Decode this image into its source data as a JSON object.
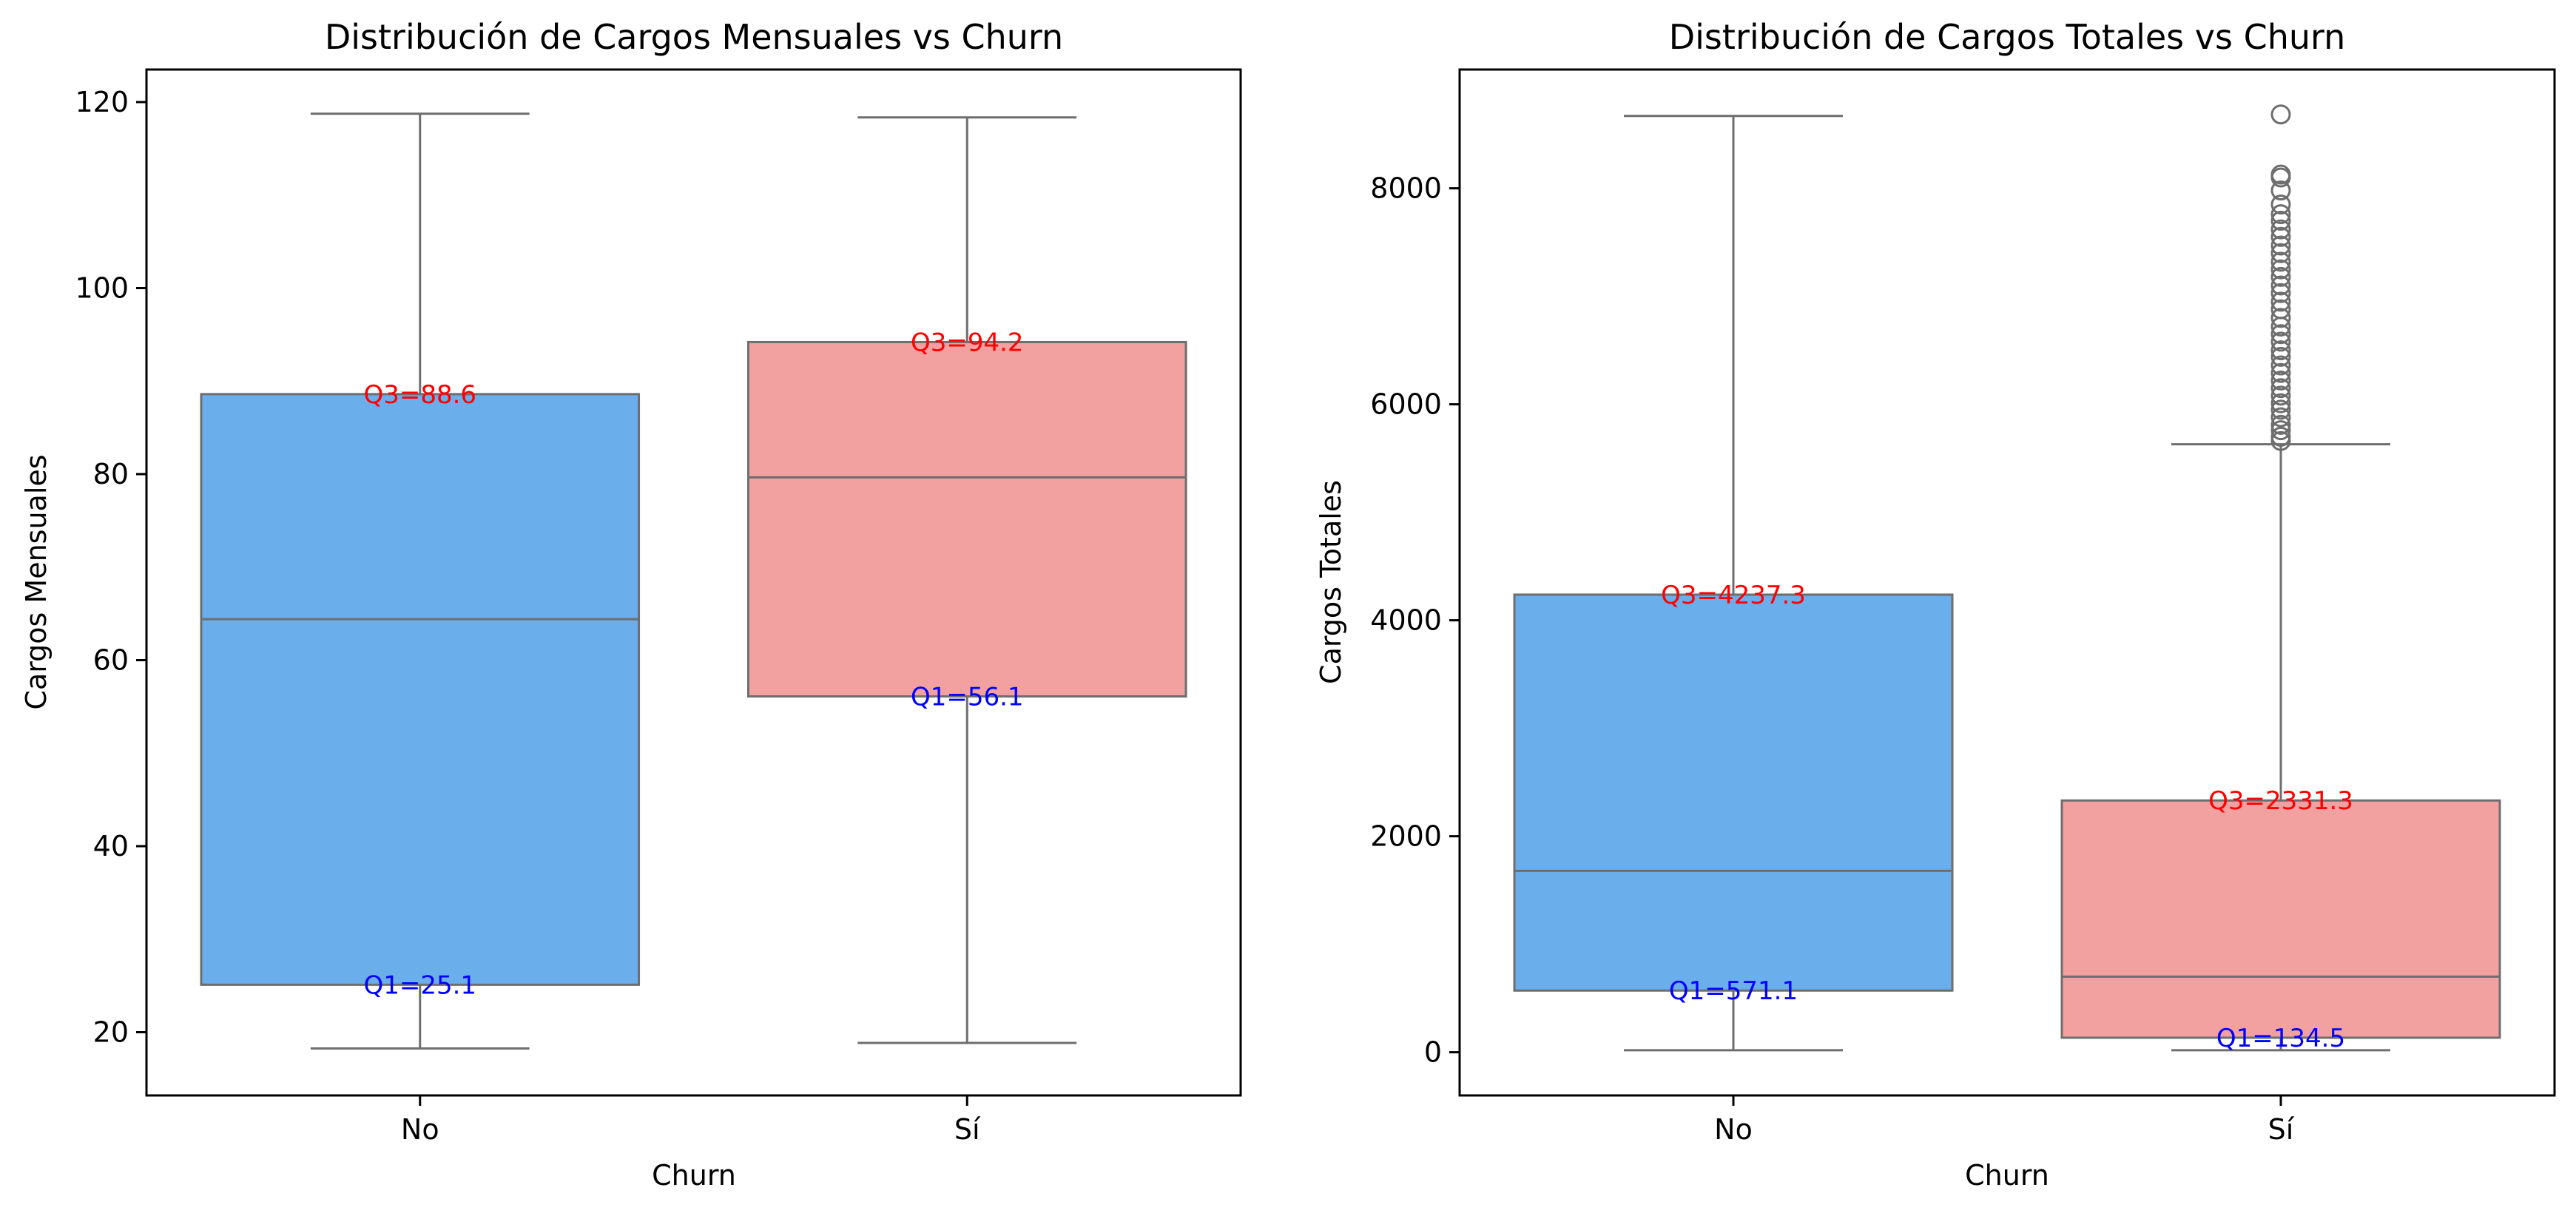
{
  "chart_data": [
    {
      "type": "box",
      "title": "Distribución de Cargos Mensuales vs Churn",
      "xlabel": "Churn",
      "ylabel": "Cargos Mensuales",
      "categories": [
        "No",
        "Sí"
      ],
      "ylim": [
        13.2,
        123.5
      ],
      "yticks": [
        20,
        40,
        60,
        80,
        100,
        120
      ],
      "grid": false,
      "boxes": [
        {
          "category": "No",
          "whisker_low": 18.25,
          "q1": 25.1,
          "median": 64.4,
          "q3": 88.6,
          "whisker_high": 118.75,
          "color": "#6aaeec",
          "outliers": []
        },
        {
          "category": "Sí",
          "whisker_low": 18.85,
          "q1": 56.1,
          "median": 79.65,
          "q3": 94.2,
          "whisker_high": 118.35,
          "color": "#f2a0a0",
          "outliers": []
        }
      ],
      "annotations": [
        {
          "text": "Q3=88.6",
          "category": "No",
          "y": 88.6,
          "color": "#ff0000"
        },
        {
          "text": "Q1=25.1",
          "category": "No",
          "y": 25.1,
          "color": "#0000ff"
        },
        {
          "text": "Q3=94.2",
          "category": "Sí",
          "y": 94.2,
          "color": "#ff0000"
        },
        {
          "text": "Q1=56.1",
          "category": "Sí",
          "y": 56.1,
          "color": "#0000ff"
        }
      ]
    },
    {
      "type": "box",
      "title": "Distribución de Cargos Totales vs Churn",
      "xlabel": "Churn",
      "ylabel": "Cargos Totales",
      "categories": [
        "No",
        "Sí"
      ],
      "ylim": [
        -400,
        9100
      ],
      "yticks": [
        0,
        2000,
        4000,
        6000,
        8000
      ],
      "grid": false,
      "boxes": [
        {
          "category": "No",
          "whisker_low": 19,
          "q1": 571.1,
          "median": 1680,
          "q3": 4237.3,
          "whisker_high": 8670,
          "color": "#6aaeec",
          "outliers": []
        },
        {
          "category": "Sí",
          "whisker_low": 19,
          "q1": 134.5,
          "median": 700,
          "q3": 2331.3,
          "whisker_high": 5630,
          "color": "#f2a0a0",
          "outliers": [
            8684,
            8127,
            8100,
            7980,
            7850,
            7760,
            7700,
            7620,
            7550,
            7470,
            7400,
            7320,
            7250,
            7180,
            7100,
            7030,
            6950,
            6880,
            6800,
            6720,
            6650,
            6580,
            6500,
            6440,
            6360,
            6290,
            6220,
            6150,
            6080,
            6010,
            5950,
            5880,
            5810,
            5760,
            5700,
            5660
          ]
        }
      ],
      "annotations": [
        {
          "text": "Q3=4237.3",
          "category": "No",
          "y": 4237.3,
          "color": "#ff0000"
        },
        {
          "text": "Q1=571.1",
          "category": "No",
          "y": 571.1,
          "color": "#0000ff"
        },
        {
          "text": "Q3=2331.3",
          "category": "Sí",
          "y": 2331.3,
          "color": "#ff0000"
        },
        {
          "text": "Q1=134.5",
          "category": "Sí",
          "y": 134.5,
          "color": "#0000ff"
        }
      ]
    }
  ]
}
